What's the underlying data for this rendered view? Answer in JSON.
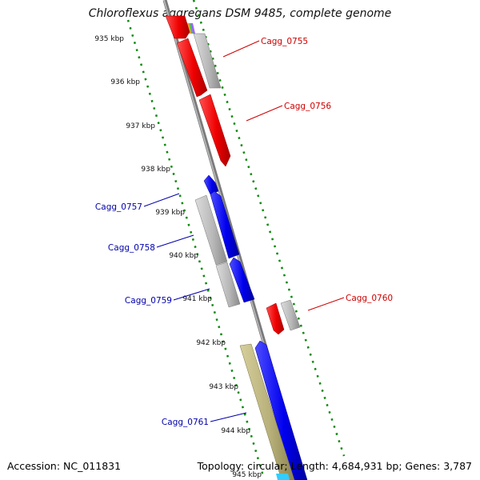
{
  "title": "Chloroflexus aggregans DSM 9485, complete genome",
  "footer": {
    "accession": "Accession: NC_011831",
    "summary": "Topology: circular; Length: 4,684,931 bp; Genes: 3,787"
  },
  "scale": [
    {
      "label": "935 kbp"
    },
    {
      "label": "936 kbp"
    },
    {
      "label": "937 kbp"
    },
    {
      "label": "938 kbp"
    },
    {
      "label": "939 kbp"
    },
    {
      "label": "940 kbp"
    },
    {
      "label": "941 kbp"
    },
    {
      "label": "942 kbp"
    },
    {
      "label": "943 kbp"
    },
    {
      "label": "944 kbp"
    },
    {
      "label": "945 kbp"
    }
  ],
  "gene_labels": {
    "forward": [
      "Cagg_0755",
      "Cagg_0756",
      "Cagg_0760"
    ],
    "reverse": [
      "Cagg_0757",
      "Cagg_0758",
      "Cagg_0759",
      "Cagg_0761"
    ]
  },
  "colors": {
    "forward_label": "#cc0000",
    "reverse_label": "#0000aa",
    "forward_feature": "#ff0000",
    "reverse_feature": "#0000ff",
    "pseudo_feature": "#b8b8b8",
    "other_feature": "#b8b07a",
    "ticks": "#007a00"
  }
}
